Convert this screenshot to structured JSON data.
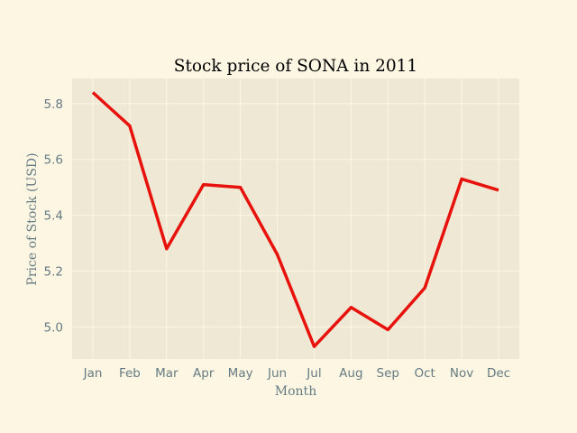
{
  "chart_data": {
    "type": "line",
    "title": "Stock price of SONA in 2011",
    "xlabel": "Month",
    "ylabel": "Price of Stock (USD)",
    "categories": [
      "Jan",
      "Feb",
      "Mar",
      "Apr",
      "May",
      "Jun",
      "Jul",
      "Aug",
      "Sep",
      "Oct",
      "Nov",
      "Dec"
    ],
    "series": [
      {
        "values": [
          5.84,
          5.72,
          5.28,
          5.51,
          5.5,
          5.26,
          4.93,
          5.07,
          4.99,
          5.14,
          5.53,
          5.49
        ]
      }
    ],
    "ylim": [
      4.885,
      5.89
    ],
    "yticks": [
      "5.0",
      "5.2",
      "5.4",
      "5.6",
      "5.8"
    ],
    "grid": true,
    "colors": {
      "line": "#e8120c",
      "plot_background": "#eee8d5",
      "figure_background": "#fdf6e3",
      "grid": "#fdf6e3",
      "text": "#657b83"
    }
  }
}
